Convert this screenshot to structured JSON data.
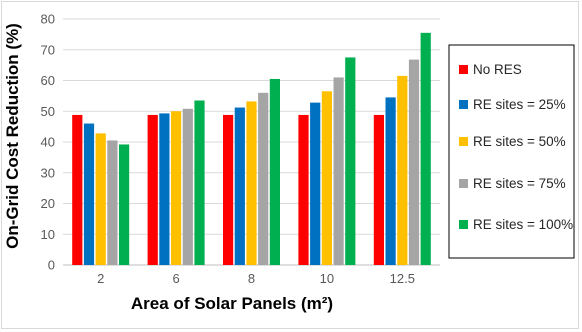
{
  "chart_data": {
    "type": "bar",
    "categories": [
      "2",
      "6",
      "8",
      "10",
      "12.5"
    ],
    "series": [
      {
        "name": "No RES",
        "color": "#FF0000",
        "values": [
          48.8,
          48.8,
          48.8,
          48.8,
          48.8
        ]
      },
      {
        "name": "RE sites = 25%",
        "color": "#0070C0",
        "values": [
          46,
          49.3,
          51.2,
          52.8,
          54.5
        ]
      },
      {
        "name": "RE sites = 50%",
        "color": "#FFC000",
        "values": [
          42.8,
          50,
          53.2,
          56.5,
          61.5
        ]
      },
      {
        "name": "RE sites = 75%",
        "color": "#A5A5A5",
        "values": [
          40.5,
          50.8,
          56,
          61,
          66.8
        ]
      },
      {
        "name": "RE sites = 100%",
        "color": "#00B050",
        "values": [
          39.2,
          53.5,
          60.5,
          67.5,
          75.5
        ]
      }
    ],
    "xlabel": "Area of Solar Panels (m²)",
    "ylabel": "On-Grid Cost Reduction (%)",
    "ylim": [
      0,
      80
    ],
    "yticks": [
      "0",
      "10",
      "20",
      "30",
      "40",
      "50",
      "60",
      "70",
      "80"
    ],
    "grid": true,
    "legend_position": "right"
  }
}
